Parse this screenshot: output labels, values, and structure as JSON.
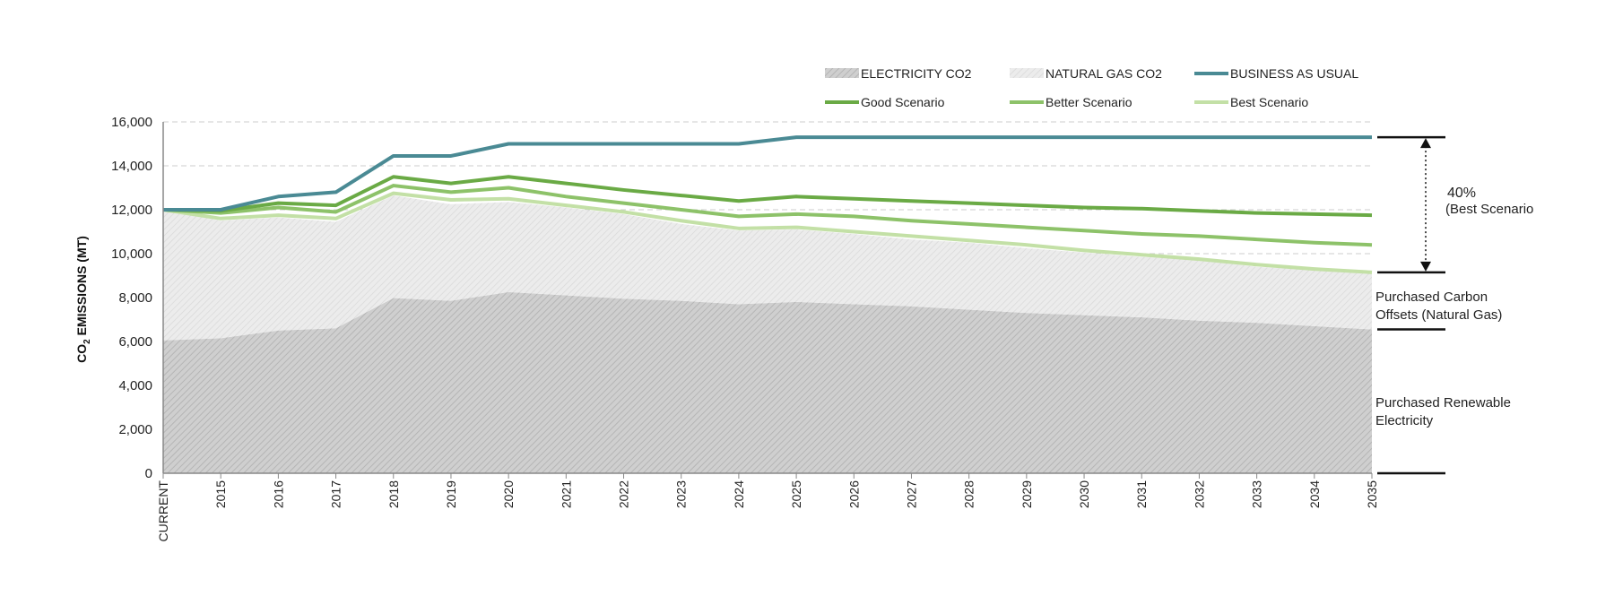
{
  "chart_data": {
    "type": "area",
    "categories": [
      "CURRENT",
      "2015",
      "2016",
      "2017",
      "2018",
      "2019",
      "2020",
      "2021",
      "2022",
      "2023",
      "2024",
      "2025",
      "2026",
      "2027",
      "2028",
      "2029",
      "2030",
      "2031",
      "2032",
      "2033",
      "2034",
      "2035"
    ],
    "ylabel_main": "CO",
    "ylabel_sub": "2",
    "ylabel_rest": " EMISSIONS (MT)",
    "ylim": [
      0,
      16000
    ],
    "yticks": [
      0,
      2000,
      4000,
      6000,
      8000,
      10000,
      12000,
      14000,
      16000
    ],
    "ytick_labels": [
      "0",
      "2,000",
      "4,000",
      "6,000",
      "8,000",
      "10,000",
      "12,000",
      "14,000",
      "16,000"
    ],
    "grid": "horizontal dashed",
    "legend_position": "top-right",
    "areas": [
      {
        "name": "ELECTRICITY CO2",
        "color": "#c9c9c9",
        "values": [
          6050,
          6150,
          6500,
          6600,
          7980,
          7850,
          8250,
          8100,
          7950,
          7850,
          7700,
          7800,
          7700,
          7600,
          7450,
          7300,
          7200,
          7100,
          6950,
          6850,
          6700,
          6550
        ]
      },
      {
        "name": "NATURAL GAS CO2",
        "color": "#e6e6e6",
        "values": [
          5950,
          5350,
          5150,
          4850,
          4670,
          4400,
          4100,
          4000,
          3850,
          3500,
          3350,
          3300,
          3200,
          3050,
          3050,
          2950,
          2850,
          2750,
          2750,
          2550,
          2550,
          2550
        ]
      }
    ],
    "series": [
      {
        "name": "BUSINESS AS USUAL",
        "color": "#4a8a94",
        "values": [
          12000,
          12000,
          12600,
          12800,
          14450,
          14450,
          15000,
          15000,
          15000,
          15000,
          15000,
          15300,
          15300,
          15300,
          15300,
          15300,
          15300,
          15300,
          15300,
          15300,
          15300,
          15300
        ]
      },
      {
        "name": "Good Scenario",
        "color": "#6aaa45",
        "values": [
          12000,
          11950,
          12300,
          12200,
          13500,
          13200,
          13500,
          13200,
          12900,
          12650,
          12400,
          12600,
          12500,
          12400,
          12300,
          12200,
          12100,
          12050,
          11950,
          11850,
          11800,
          11750
        ]
      },
      {
        "name": "Better Scenario",
        "color": "#8dc269",
        "values": [
          12000,
          11850,
          12100,
          11900,
          13100,
          12800,
          13000,
          12600,
          12300,
          12000,
          11700,
          11800,
          11700,
          11500,
          11350,
          11200,
          11050,
          10900,
          10800,
          10650,
          10500,
          10400
        ]
      },
      {
        "name": "Best Scenario",
        "color": "#c3e0a6",
        "values": [
          12000,
          11600,
          11750,
          11600,
          12750,
          12450,
          12500,
          12200,
          11900,
          11500,
          11150,
          11200,
          11000,
          10800,
          10600,
          10400,
          10150,
          9950,
          9750,
          9500,
          9300,
          9150
        ]
      }
    ],
    "annotations": {
      "percent": "40%",
      "percent_note": "(Best Scenario",
      "gas_label_1": "Purchased Carbon",
      "gas_label_2": "Offsets (Natural Gas)",
      "elec_label_1": "Purchased Renewable",
      "elec_label_2": "Electricity"
    }
  }
}
